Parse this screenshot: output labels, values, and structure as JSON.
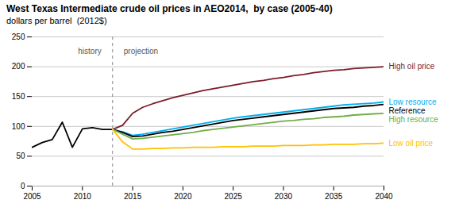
{
  "chart_data": {
    "type": "line",
    "title": "West Texas Intermediate crude oil prices in AEO2014,  by case (2005-40)",
    "subtitle": "dollars per barrel  (2012$)",
    "annotations": [
      "history",
      "projection"
    ],
    "divider": 2013,
    "xlim": [
      2005,
      2040
    ],
    "ylim": [
      0,
      250
    ],
    "xticks": [
      2005,
      2010,
      2015,
      2020,
      2025,
      2030,
      2035,
      2040
    ],
    "yticks": [
      0,
      50,
      100,
      150,
      200,
      250
    ],
    "grid": true,
    "series": [
      {
        "color": "#000000",
        "x": [
          2005,
          2006,
          2007,
          2008,
          2009,
          2010,
          2011,
          2012,
          2013
        ],
        "values": [
          65,
          73,
          78,
          107,
          65,
          96,
          98,
          95,
          95
        ]
      },
      {
        "name": "High oil price",
        "color": "#7B1C2A",
        "x": [
          2013,
          2014,
          2015,
          2016,
          2017,
          2018,
          2019,
          2020,
          2021,
          2022,
          2023,
          2024,
          2025,
          2026,
          2027,
          2028,
          2029,
          2030,
          2031,
          2032,
          2033,
          2034,
          2035,
          2036,
          2037,
          2038,
          2039,
          2040
        ],
        "values": [
          95,
          102,
          122,
          132,
          138,
          143,
          148,
          152,
          156,
          160,
          163,
          166,
          169,
          172,
          175,
          177,
          180,
          182,
          185,
          187,
          190,
          192,
          194,
          195,
          197,
          198,
          199,
          200
        ]
      },
      {
        "name": "Low resource",
        "color": "#00AEEF",
        "x": [
          2013,
          2014,
          2015,
          2016,
          2017,
          2018,
          2019,
          2020,
          2021,
          2022,
          2023,
          2024,
          2025,
          2026,
          2027,
          2028,
          2029,
          2030,
          2031,
          2032,
          2033,
          2034,
          2035,
          2036,
          2037,
          2038,
          2039,
          2040
        ],
        "values": [
          95,
          91,
          85,
          87,
          90,
          93,
          96,
          99,
          102,
          105,
          108,
          111,
          114,
          116,
          118,
          120,
          122,
          124,
          126,
          128,
          130,
          132,
          134,
          136,
          137,
          138,
          139,
          141
        ]
      },
      {
        "name": "Reference",
        "color": "#000000",
        "x": [
          2013,
          2014,
          2015,
          2016,
          2017,
          2018,
          2019,
          2020,
          2021,
          2022,
          2023,
          2024,
          2025,
          2026,
          2027,
          2028,
          2029,
          2030,
          2031,
          2032,
          2033,
          2034,
          2035,
          2036,
          2037,
          2038,
          2039,
          2040
        ],
        "values": [
          95,
          90,
          83,
          84,
          87,
          90,
          92,
          95,
          98,
          101,
          104,
          107,
          110,
          112,
          114,
          116,
          118,
          120,
          122,
          124,
          126,
          128,
          130,
          131,
          132,
          134,
          135,
          137
        ]
      },
      {
        "name": "High resource",
        "color": "#70AD47",
        "x": [
          2013,
          2014,
          2015,
          2016,
          2017,
          2018,
          2019,
          2020,
          2021,
          2022,
          2023,
          2024,
          2025,
          2026,
          2027,
          2028,
          2029,
          2030,
          2031,
          2032,
          2033,
          2034,
          2035,
          2036,
          2037,
          2038,
          2039,
          2040
        ],
        "values": [
          95,
          87,
          79,
          80,
          82,
          84,
          86,
          88,
          90,
          93,
          95,
          97,
          99,
          101,
          103,
          105,
          107,
          109,
          110,
          112,
          113,
          115,
          116,
          117,
          119,
          120,
          121,
          122
        ]
      },
      {
        "name": "Low oil price",
        "color": "#FFC000",
        "x": [
          2013,
          2014,
          2015,
          2016,
          2017,
          2018,
          2019,
          2020,
          2021,
          2022,
          2023,
          2024,
          2025,
          2026,
          2027,
          2028,
          2029,
          2030,
          2031,
          2032,
          2033,
          2034,
          2035,
          2036,
          2037,
          2038,
          2039,
          2040
        ],
        "values": [
          95,
          74,
          62,
          62,
          63,
          63,
          64,
          64,
          65,
          65,
          65,
          66,
          66,
          66,
          67,
          67,
          67,
          68,
          68,
          68,
          69,
          69,
          70,
          70,
          70,
          71,
          71,
          72
        ]
      }
    ]
  }
}
